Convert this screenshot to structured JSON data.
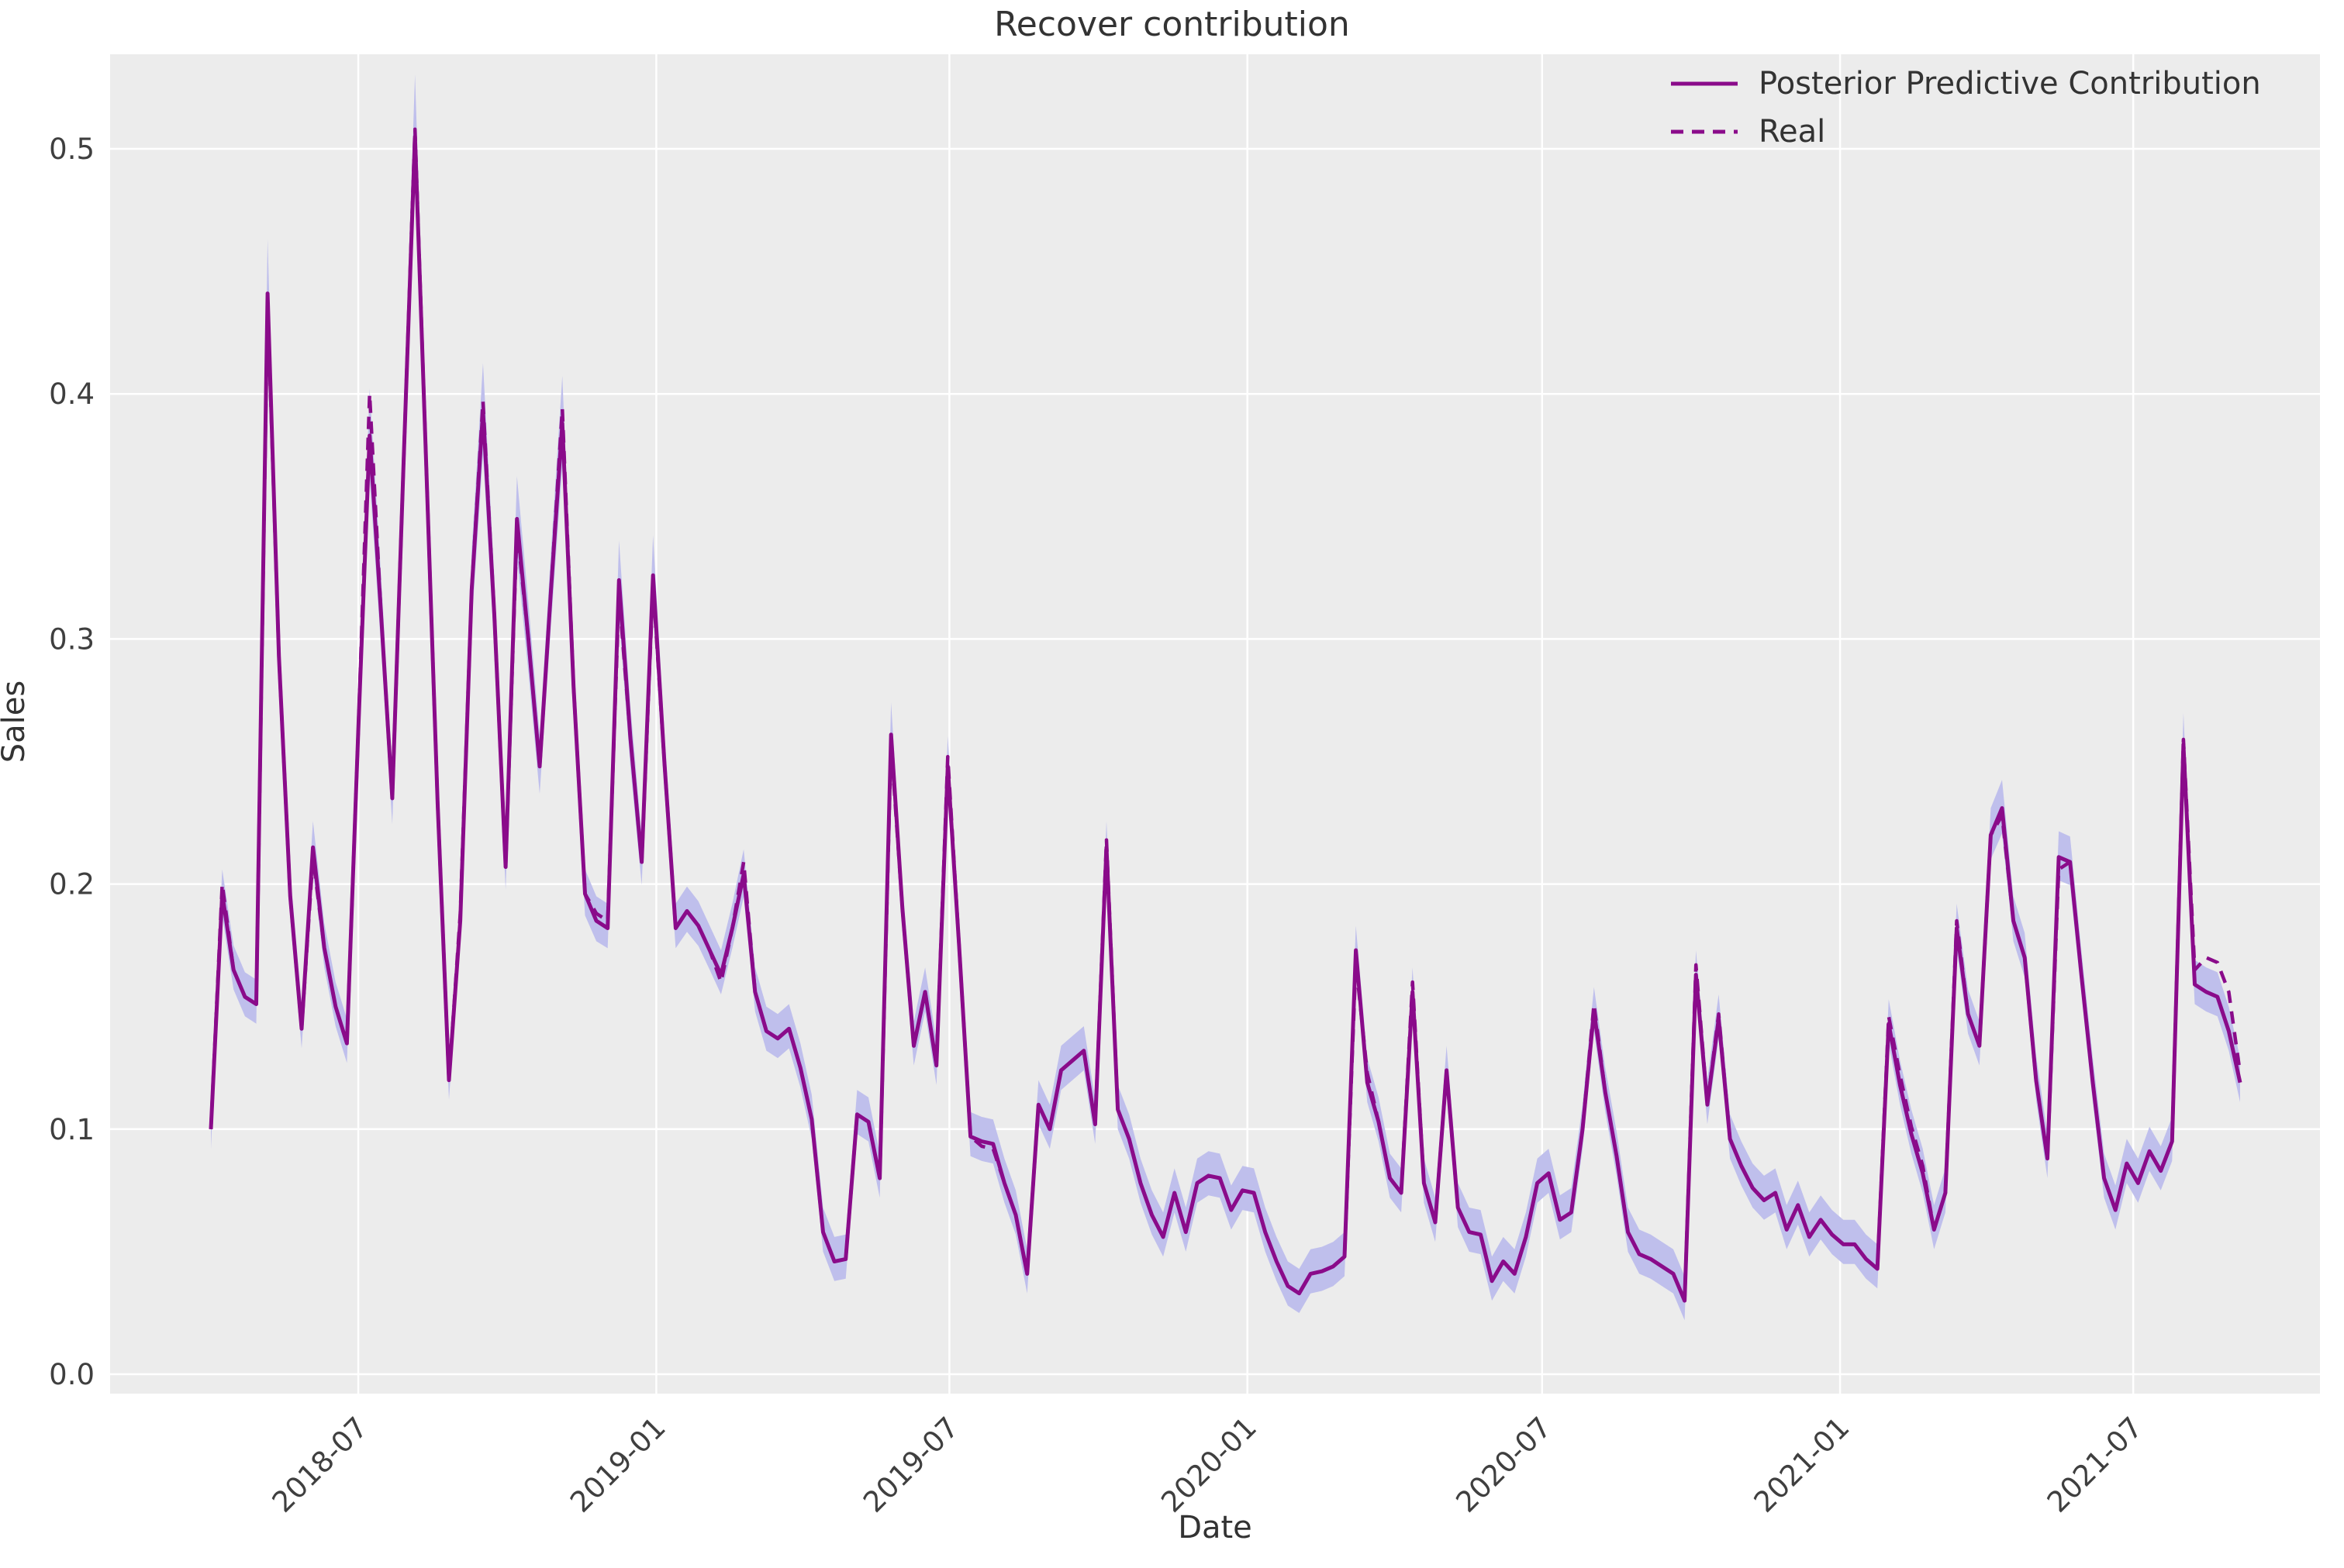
{
  "chart_data": {
    "type": "line",
    "title": "Recover contribution",
    "xlabel": "Date",
    "ylabel": "Sales",
    "x_start_date": "2018-04-01",
    "x_interval_days": 7,
    "x_tick_labels": [
      "2018-07",
      "2019-01",
      "2019-07",
      "2020-01",
      "2020-07",
      "2021-01",
      "2021-07"
    ],
    "y_ticks": [
      0.0,
      0.1,
      0.2,
      0.3,
      0.4,
      0.5
    ],
    "ylim": [
      -0.008,
      0.539
    ],
    "grid": true,
    "legend_position": "upper right",
    "series": [
      {
        "name": "Posterior Predictive Contribution",
        "style": "solid",
        "color": "#8a0b8a",
        "values": [
          0.1,
          0.196,
          0.165,
          0.154,
          0.151,
          0.441,
          0.293,
          0.195,
          0.141,
          0.215,
          0.174,
          0.15,
          0.135,
          0.263,
          0.383,
          0.311,
          0.235,
          0.372,
          0.505,
          0.37,
          0.233,
          0.12,
          0.185,
          0.32,
          0.393,
          0.31,
          0.207,
          0.349,
          0.3,
          0.248,
          0.32,
          0.388,
          0.28,
          0.196,
          0.185,
          0.182,
          0.324,
          0.26,
          0.209,
          0.326,
          0.25,
          0.182,
          0.189,
          0.183,
          0.173,
          0.163,
          0.182,
          0.204,
          0.156,
          0.14,
          0.137,
          0.141,
          0.125,
          0.104,
          0.058,
          0.046,
          0.047,
          0.106,
          0.103,
          0.08,
          0.261,
          0.19,
          0.134,
          0.156,
          0.126,
          0.248,
          0.175,
          0.097,
          0.095,
          0.094,
          0.078,
          0.065,
          0.041,
          0.11,
          0.1,
          0.124,
          0.128,
          0.132,
          0.102,
          0.215,
          0.108,
          0.096,
          0.078,
          0.065,
          0.056,
          0.074,
          0.058,
          0.078,
          0.081,
          0.08,
          0.067,
          0.075,
          0.074,
          0.058,
          0.046,
          0.036,
          0.033,
          0.041,
          0.042,
          0.044,
          0.048,
          0.173,
          0.119,
          0.103,
          0.08,
          0.074,
          0.156,
          0.078,
          0.062,
          0.124,
          0.068,
          0.058,
          0.057,
          0.038,
          0.046,
          0.041,
          0.056,
          0.078,
          0.082,
          0.063,
          0.066,
          0.1,
          0.148,
          0.115,
          0.089,
          0.058,
          0.049,
          0.047,
          0.044,
          0.041,
          0.03,
          0.163,
          0.11,
          0.145,
          0.096,
          0.085,
          0.076,
          0.071,
          0.074,
          0.059,
          0.069,
          0.056,
          0.063,
          0.057,
          0.053,
          0.053,
          0.047,
          0.043,
          0.143,
          0.118,
          0.098,
          0.082,
          0.059,
          0.074,
          0.182,
          0.147,
          0.134,
          0.22,
          0.231,
          0.185,
          0.17,
          0.12,
          0.088,
          0.211,
          0.209,
          0.163,
          0.119,
          0.08,
          0.067,
          0.086,
          0.078,
          0.091,
          0.083,
          0.095,
          0.257,
          0.159,
          0.156,
          0.154,
          0.14,
          0.119
        ]
      },
      {
        "name": "Real",
        "style": "dashed",
        "color": "#8a0b8a",
        "values": [
          0.1,
          0.2,
          0.165,
          0.154,
          0.151,
          0.438,
          0.293,
          0.195,
          0.141,
          0.211,
          0.174,
          0.15,
          0.135,
          0.263,
          0.4,
          0.311,
          0.235,
          0.372,
          0.508,
          0.37,
          0.233,
          0.12,
          0.188,
          0.32,
          0.397,
          0.31,
          0.207,
          0.345,
          0.3,
          0.248,
          0.32,
          0.394,
          0.28,
          0.196,
          0.188,
          0.185,
          0.318,
          0.26,
          0.209,
          0.322,
          0.25,
          0.182,
          0.189,
          0.183,
          0.173,
          0.16,
          0.182,
          0.209,
          0.156,
          0.14,
          0.137,
          0.141,
          0.125,
          0.104,
          0.058,
          0.046,
          0.047,
          0.106,
          0.103,
          0.08,
          0.257,
          0.19,
          0.134,
          0.156,
          0.126,
          0.252,
          0.175,
          0.097,
          0.093,
          0.092,
          0.078,
          0.065,
          0.041,
          0.11,
          0.1,
          0.124,
          0.128,
          0.132,
          0.102,
          0.218,
          0.108,
          0.096,
          0.078,
          0.065,
          0.056,
          0.074,
          0.058,
          0.078,
          0.081,
          0.08,
          0.067,
          0.075,
          0.074,
          0.058,
          0.046,
          0.036,
          0.033,
          0.041,
          0.042,
          0.044,
          0.048,
          0.168,
          0.123,
          0.103,
          0.08,
          0.074,
          0.16,
          0.078,
          0.062,
          0.124,
          0.068,
          0.058,
          0.057,
          0.038,
          0.046,
          0.041,
          0.056,
          0.078,
          0.082,
          0.063,
          0.066,
          0.1,
          0.151,
          0.115,
          0.089,
          0.058,
          0.049,
          0.047,
          0.044,
          0.041,
          0.03,
          0.167,
          0.11,
          0.147,
          0.096,
          0.085,
          0.076,
          0.071,
          0.074,
          0.059,
          0.069,
          0.056,
          0.063,
          0.057,
          0.053,
          0.053,
          0.047,
          0.043,
          0.146,
          0.122,
          0.101,
          0.085,
          0.059,
          0.074,
          0.185,
          0.147,
          0.134,
          0.22,
          0.228,
          0.185,
          0.17,
          0.12,
          0.088,
          0.206,
          0.209,
          0.163,
          0.119,
          0.08,
          0.067,
          0.086,
          0.078,
          0.091,
          0.083,
          0.095,
          0.259,
          0.165,
          0.17,
          0.168,
          0.156,
          0.123
        ]
      }
    ],
    "band": {
      "name": "HDI band",
      "around_series": "Posterior Predictive Contribution",
      "color": "#bfbfec",
      "upper_abs": 0.01,
      "upper_frac": 0.05,
      "lower_abs": 0.008,
      "lower_frac": 0.045
    },
    "colors": {
      "line": "#8a0b8a",
      "band": "#bfbfec",
      "plot_bg": "#ececec",
      "fig_bg": "#ffffff",
      "grid": "#ffffff",
      "text": "#333333",
      "tick_text": "#3f3f3f"
    }
  }
}
